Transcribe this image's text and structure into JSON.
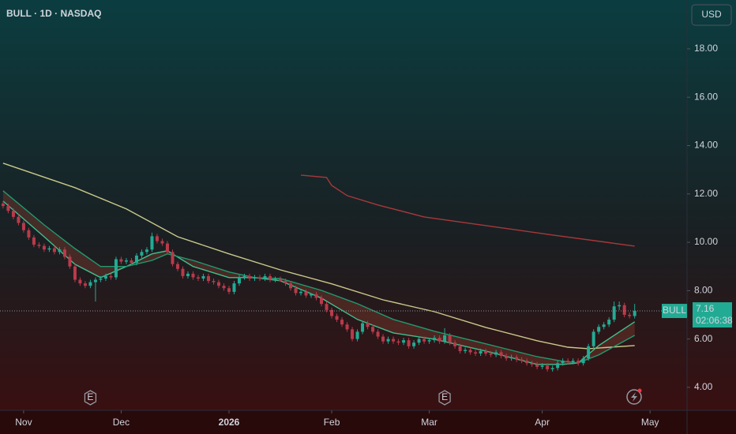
{
  "chart_data": {
    "type": "candlestick",
    "title": "BULL · 1D · NASDAQ",
    "currency": "USD",
    "symbol": "BULL",
    "countdown": "02:06:38",
    "up_color": "#22ab94",
    "down_color": "#b83b4b",
    "xlim": [
      -4.6,
      129.2
    ],
    "ylim": [
      3.05,
      20.02
    ],
    "yticks": [
      {
        "value": 4,
        "label": "4.00"
      },
      {
        "value": 6,
        "label": "6.00"
      },
      {
        "value": 8,
        "label": "8.00"
      },
      {
        "value": 10,
        "label": "10.00"
      },
      {
        "value": 12,
        "label": "12.00"
      },
      {
        "value": 14,
        "label": "14.00"
      },
      {
        "value": 16,
        "label": "16.00"
      },
      {
        "value": 18,
        "label": "18.00"
      }
    ],
    "xticks": [
      {
        "value": 0,
        "label": "Nov"
      },
      {
        "value": 19,
        "label": "Dec"
      },
      {
        "value": 40,
        "label": "2026"
      },
      {
        "value": 60,
        "label": "Feb"
      },
      {
        "value": 79,
        "label": "Mar"
      },
      {
        "value": 101,
        "label": "Apr"
      },
      {
        "value": 122,
        "label": "May"
      }
    ],
    "x": [
      -4,
      -3,
      -2,
      -1,
      0,
      1,
      2,
      3,
      4,
      5,
      6,
      7,
      8,
      9,
      10,
      11,
      12,
      13,
      14,
      15,
      16,
      17,
      18,
      19,
      20,
      21,
      22,
      23,
      24,
      25,
      26,
      27,
      28,
      29,
      30,
      31,
      32,
      33,
      34,
      35,
      36,
      37,
      38,
      39,
      40,
      41,
      42,
      43,
      44,
      45,
      46,
      47,
      48,
      49,
      50,
      51,
      52,
      53,
      54,
      55,
      56,
      57,
      58,
      59,
      60,
      61,
      62,
      63,
      64,
      65,
      66,
      67,
      68,
      69,
      70,
      71,
      72,
      73,
      74,
      75,
      76,
      77,
      78,
      79,
      80,
      81,
      82,
      83,
      84,
      85,
      86,
      87,
      88,
      89,
      90,
      91,
      92,
      93,
      94,
      95,
      96,
      97,
      98,
      99,
      100,
      101,
      102,
      103,
      104,
      105,
      106,
      107,
      108,
      109,
      110,
      111,
      112,
      113,
      114,
      115,
      116,
      117,
      118,
      119
    ],
    "open": [
      11.6,
      11.5,
      11.3,
      11.05,
      10.8,
      10.5,
      10.2,
      9.9,
      9.85,
      9.7,
      9.75,
      9.6,
      9.7,
      9.4,
      9.0,
      8.45,
      8.3,
      8.2,
      8.35,
      8.45,
      8.5,
      8.6,
      8.55,
      9.3,
      9.2,
      9.25,
      9.15,
      9.45,
      9.6,
      9.7,
      10.25,
      10.05,
      9.95,
      9.6,
      9.1,
      8.9,
      8.6,
      8.7,
      8.55,
      8.5,
      8.6,
      8.4,
      8.35,
      8.2,
      8.1,
      7.95,
      8.3,
      8.55,
      8.6,
      8.5,
      8.55,
      8.5,
      8.6,
      8.45,
      8.48,
      8.4,
      8.3,
      8.1,
      7.9,
      7.95,
      7.8,
      7.85,
      7.7,
      7.45,
      7.2,
      6.95,
      6.8,
      6.6,
      6.4,
      6.0,
      6.3,
      6.65,
      6.5,
      6.3,
      6.1,
      5.9,
      6.0,
      5.9,
      5.85,
      5.95,
      5.7,
      5.85,
      6.0,
      5.9,
      5.95,
      6.05,
      5.9,
      6.15,
      5.85,
      5.7,
      5.5,
      5.55,
      5.45,
      5.4,
      5.5,
      5.4,
      5.35,
      5.45,
      5.3,
      5.2,
      5.25,
      5.15,
      5.1,
      5.0,
      4.95,
      4.85,
      4.9,
      4.75,
      4.8,
      5.0,
      5.1,
      5.05,
      5.1,
      5.0,
      5.2,
      5.7,
      6.3,
      6.5,
      6.6,
      6.8,
      7.35,
      7.4,
      7.0,
      6.95
    ],
    "high": [
      11.7,
      11.6,
      11.4,
      11.15,
      10.9,
      10.6,
      10.3,
      10.0,
      9.95,
      9.85,
      9.85,
      9.8,
      9.8,
      9.5,
      9.1,
      8.55,
      8.4,
      8.45,
      8.55,
      8.6,
      8.7,
      8.7,
      9.4,
      9.4,
      9.35,
      9.35,
      9.55,
      9.7,
      9.8,
      10.4,
      10.35,
      10.15,
      10.05,
      9.7,
      9.2,
      9.0,
      8.8,
      8.8,
      8.65,
      8.7,
      8.7,
      8.5,
      8.45,
      8.3,
      8.2,
      8.4,
      8.65,
      8.7,
      8.7,
      8.65,
      8.65,
      8.7,
      8.7,
      8.58,
      8.58,
      8.5,
      8.4,
      8.2,
      8.05,
      8.05,
      7.9,
      7.95,
      7.8,
      7.55,
      7.3,
      7.05,
      6.9,
      6.7,
      6.5,
      6.4,
      6.75,
      6.75,
      6.6,
      6.4,
      6.2,
      6.1,
      6.1,
      6.0,
      6.05,
      6.05,
      5.95,
      6.1,
      6.1,
      6.05,
      6.15,
      6.15,
      6.45,
      6.25,
      5.95,
      5.8,
      5.65,
      5.65,
      5.55,
      5.6,
      5.6,
      5.5,
      5.55,
      5.55,
      5.4,
      5.35,
      5.35,
      5.25,
      5.2,
      5.1,
      5.05,
      5.0,
      5.0,
      4.9,
      5.1,
      5.2,
      5.2,
      5.2,
      5.2,
      5.3,
      5.8,
      6.4,
      6.6,
      6.7,
      6.9,
      7.55,
      7.55,
      7.5,
      7.1,
      7.45
    ],
    "low": [
      11.4,
      11.2,
      10.95,
      10.7,
      10.4,
      10.1,
      9.8,
      9.75,
      9.6,
      9.6,
      9.5,
      9.5,
      9.3,
      8.9,
      8.35,
      8.2,
      8.1,
      8.1,
      7.55,
      8.35,
      8.4,
      8.45,
      8.45,
      9.1,
      9.1,
      9.05,
      9.05,
      9.35,
      9.5,
      9.6,
      9.95,
      9.85,
      9.5,
      9.0,
      8.8,
      8.5,
      8.5,
      8.45,
      8.4,
      8.4,
      8.3,
      8.25,
      8.1,
      8.0,
      7.85,
      7.85,
      8.2,
      8.45,
      8.4,
      8.4,
      8.4,
      8.4,
      8.35,
      8.35,
      8.38,
      8.2,
      8.0,
      7.8,
      7.8,
      7.7,
      7.7,
      7.6,
      7.35,
      7.1,
      6.85,
      6.7,
      6.5,
      6.3,
      5.9,
      5.9,
      6.2,
      6.4,
      6.2,
      6.0,
      5.8,
      5.8,
      5.8,
      5.75,
      5.75,
      5.6,
      5.6,
      5.75,
      5.8,
      5.8,
      5.85,
      5.8,
      5.8,
      5.75,
      5.6,
      5.4,
      5.4,
      5.35,
      5.3,
      5.3,
      5.3,
      5.25,
      5.25,
      5.2,
      5.1,
      5.1,
      5.05,
      5.0,
      4.9,
      4.85,
      4.75,
      4.75,
      4.65,
      4.65,
      4.7,
      4.9,
      4.95,
      4.95,
      4.9,
      4.9,
      5.1,
      5.6,
      6.2,
      6.4,
      6.5,
      6.7,
      7.2,
      6.9,
      6.85,
      6.85
    ],
    "close": [
      11.5,
      11.3,
      11.05,
      10.8,
      10.5,
      10.2,
      9.9,
      9.85,
      9.7,
      9.75,
      9.6,
      9.7,
      9.4,
      9.0,
      8.45,
      8.3,
      8.2,
      8.35,
      8.45,
      8.5,
      8.6,
      8.55,
      9.3,
      9.2,
      9.25,
      9.15,
      9.45,
      9.6,
      9.7,
      10.25,
      10.05,
      9.95,
      9.6,
      9.1,
      8.9,
      8.6,
      8.7,
      8.55,
      8.5,
      8.6,
      8.4,
      8.35,
      8.2,
      8.1,
      7.95,
      8.3,
      8.55,
      8.6,
      8.5,
      8.55,
      8.5,
      8.6,
      8.45,
      8.48,
      8.4,
      8.3,
      8.1,
      7.9,
      7.95,
      7.8,
      7.85,
      7.7,
      7.45,
      7.2,
      6.95,
      6.8,
      6.6,
      6.4,
      6.0,
      6.3,
      6.65,
      6.5,
      6.3,
      6.1,
      5.9,
      6.0,
      5.9,
      5.85,
      5.95,
      5.7,
      5.85,
      6.0,
      5.9,
      5.95,
      6.05,
      5.9,
      6.15,
      5.85,
      5.7,
      5.5,
      5.55,
      5.45,
      5.4,
      5.5,
      5.4,
      5.35,
      5.45,
      5.3,
      5.2,
      5.25,
      5.15,
      5.1,
      5.0,
      4.95,
      4.85,
      4.9,
      4.75,
      4.8,
      5.0,
      5.1,
      5.05,
      5.1,
      5.0,
      5.2,
      5.7,
      6.3,
      6.5,
      6.6,
      6.8,
      7.35,
      7.4,
      7.0,
      6.95,
      7.16
    ],
    "overlays": [
      {
        "color": "#c9c98a",
        "x": [
          -4,
          10,
          20,
          30,
          40,
          50,
          60,
          70,
          80,
          90,
          100,
          106,
          110,
          119
        ],
        "values": [
          13.27,
          12.26,
          11.38,
          10.23,
          9.52,
          8.86,
          8.28,
          7.62,
          7.13,
          6.48,
          5.93,
          5.66,
          5.6,
          5.73
        ]
      },
      {
        "color": "#a8383a",
        "x": [
          54,
          59,
          60,
          63,
          69,
          78,
          91,
          103,
          119
        ],
        "values": [
          12.78,
          12.68,
          12.35,
          11.93,
          11.54,
          11.05,
          10.66,
          10.3,
          9.84
        ]
      },
      {
        "color": "#3fbf8f",
        "x": [
          -4,
          4,
          10,
          15,
          20,
          25,
          28,
          33,
          40,
          45,
          50,
          58,
          65,
          72,
          80,
          90,
          100,
          105,
          108,
          112,
          119
        ],
        "values": [
          11.7,
          10.23,
          9.09,
          8.54,
          9.0,
          9.52,
          9.65,
          9.0,
          8.54,
          8.54,
          8.41,
          7.69,
          6.81,
          6.25,
          5.99,
          5.5,
          4.95,
          4.95,
          5.01,
          5.73,
          6.71
        ]
      },
      {
        "color": "#1f9a70",
        "x": [
          -4,
          4,
          10,
          15,
          20,
          25,
          28,
          33,
          40,
          45,
          50,
          58,
          65,
          72,
          80,
          90,
          100,
          105,
          108,
          112,
          119
        ],
        "values": [
          12.13,
          10.72,
          9.74,
          9.0,
          9.0,
          9.25,
          9.52,
          9.25,
          8.77,
          8.54,
          8.5,
          8.01,
          7.46,
          6.81,
          6.32,
          5.8,
          5.27,
          5.08,
          5.01,
          5.34,
          6.15
        ]
      }
    ],
    "events": [
      {
        "x": 13,
        "label": "E"
      },
      {
        "x": 82,
        "label": "E"
      }
    ]
  }
}
